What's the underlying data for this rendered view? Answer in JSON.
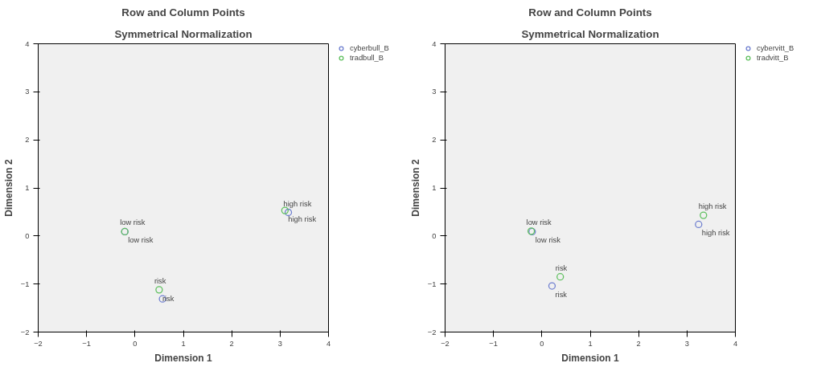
{
  "chart_data": [
    {
      "type": "scatter",
      "title": "Row and Column Points",
      "subtitle": "Symmetrical Normalization",
      "xlabel": "Dimension 1",
      "ylabel": "Dimension 2",
      "xlim": [
        -2,
        4
      ],
      "ylim": [
        -2,
        4
      ],
      "xticks": [
        -2,
        -1,
        0,
        1,
        2,
        3,
        4
      ],
      "yticks": [
        -2,
        -1,
        0,
        1,
        2,
        3,
        4
      ],
      "grid": false,
      "legend": "top right",
      "marker": "circle",
      "series": [
        {
          "name": "cyberbull_B",
          "color": "#7080d0",
          "x": [
            -0.21,
            3.17,
            0.57
          ],
          "values": [
            0.09,
            0.49,
            -1.31
          ]
        },
        {
          "name": "tradbull_B",
          "color": "#60c060",
          "x": [
            -0.21,
            3.1,
            0.5
          ],
          "values": [
            0.09,
            0.53,
            -1.12
          ]
        }
      ],
      "annotations": [
        {
          "text": "low risk",
          "x": -0.21,
          "y": 0.09
        },
        {
          "text": "low risk",
          "x": -0.21,
          "y": 0.09
        },
        {
          "text": "high risk",
          "x": 3.17,
          "y": 0.49
        },
        {
          "text": "high risk",
          "x": 3.1,
          "y": 0.53
        },
        {
          "text": "risk",
          "x": 0.5,
          "y": -1.12
        },
        {
          "text": "risk",
          "x": 0.5,
          "y": -1.12
        }
      ]
    },
    {
      "type": "scatter",
      "title": "Row and Column Points",
      "subtitle": "Symmetrical Normalization",
      "xlabel": "Dimension 1",
      "ylabel": "Dimension 2",
      "xlim": [
        -2,
        4
      ],
      "ylim": [
        -2,
        4
      ],
      "xticks": [
        -2,
        -1,
        0,
        1,
        2,
        3,
        4
      ],
      "yticks": [
        -2,
        -1,
        0,
        1,
        2,
        3,
        4
      ],
      "grid": false,
      "legend": "top right",
      "marker": "circle",
      "series": [
        {
          "name": "cybervitt_B",
          "color": "#7080d0",
          "x": [
            -0.2,
            3.24,
            0.21
          ],
          "values": [
            0.09,
            0.24,
            -1.04
          ]
        },
        {
          "name": "tradvitt_B",
          "color": "#60c060",
          "x": [
            -0.22,
            3.34,
            0.38
          ],
          "values": [
            0.1,
            0.43,
            -0.85
          ]
        }
      ],
      "annotations": [
        {
          "text": "low risk",
          "x": -0.22,
          "y": 0.1
        },
        {
          "text": "low risk",
          "x": -0.2,
          "y": 0.09
        },
        {
          "text": "high risk",
          "x": 3.34,
          "y": 0.43
        },
        {
          "text": "high risk",
          "x": 3.24,
          "y": 0.24
        },
        {
          "text": "risk",
          "x": 0.38,
          "y": -0.85
        },
        {
          "text": "risk",
          "x": 0.21,
          "y": -1.04
        }
      ]
    }
  ]
}
